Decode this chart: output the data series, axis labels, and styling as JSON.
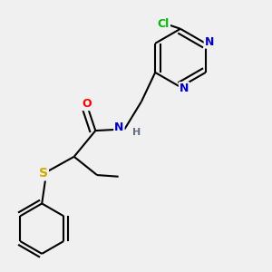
{
  "bg_color": "#f0f0f0",
  "atom_colors": {
    "C": "#000000",
    "N": "#0000cc",
    "O": "#ff0000",
    "S": "#ccaa00",
    "Cl": "#00bb00",
    "H": "#607080"
  },
  "bond_color": "#000000",
  "bond_width": 1.5,
  "figsize": [
    3.0,
    3.0
  ],
  "dpi": 100
}
